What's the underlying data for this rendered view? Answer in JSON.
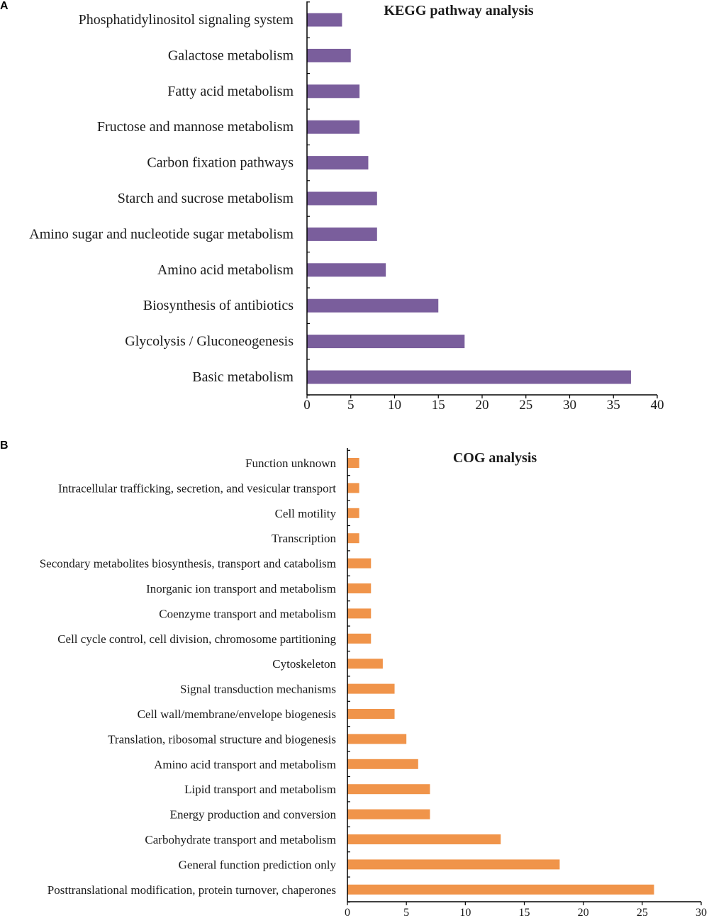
{
  "chart_data": [
    {
      "panel": "A",
      "type": "bar",
      "orientation": "horizontal",
      "title": "KEGG pathway analysis",
      "color": "#7a5e9c",
      "categories": [
        "Phosphatidylinositol signaling system",
        "Galactose metabolism",
        "Fatty acid metabolism",
        "Fructose and mannose metabolism",
        "Carbon fixation pathways",
        "Starch and sucrose metabolism",
        "Amino sugar and nucleotide sugar metabolism",
        "Amino acid metabolism",
        "Biosynthesis of antibiotics",
        "Glycolysis / Gluconeogenesis",
        "Basic metabolism"
      ],
      "values": [
        4,
        5,
        6,
        6,
        7,
        8,
        8,
        9,
        15,
        18,
        37
      ],
      "xlim": [
        0,
        40
      ],
      "xticks": [
        0,
        5,
        10,
        15,
        20,
        25,
        30,
        35,
        40
      ],
      "xlabel": "",
      "ylabel": "",
      "grid": false
    },
    {
      "panel": "B",
      "type": "bar",
      "orientation": "horizontal",
      "title": "COG analysis",
      "color": "#f0944a",
      "categories": [
        "Function unknown",
        "Intracellular trafficking, secretion, and vesicular transport",
        "Cell motility",
        "Transcription",
        "Secondary metabolites biosynthesis, transport and catabolism",
        "Inorganic ion transport and metabolism",
        "Coenzyme transport and metabolism",
        "Cell cycle control, cell division, chromosome partitioning",
        "Cytoskeleton",
        "Signal transduction mechanisms",
        "Cell wall/membrane/envelope biogenesis",
        "Translation, ribosomal structure and biogenesis",
        "Amino acid transport and metabolism",
        "Lipid transport and metabolism",
        "Energy production and conversion",
        "Carbohydrate transport and metabolism",
        "General function prediction only",
        "Posttranslational modification, protein turnover, chaperones"
      ],
      "values": [
        1,
        1,
        1,
        1,
        2,
        2,
        2,
        2,
        3,
        4,
        4,
        5,
        6,
        7,
        7,
        13,
        18,
        26
      ],
      "xlim": [
        0,
        30
      ],
      "xticks": [
        0,
        5,
        10,
        15,
        20,
        25,
        30
      ],
      "xlabel": "",
      "ylabel": "",
      "grid": false
    }
  ]
}
